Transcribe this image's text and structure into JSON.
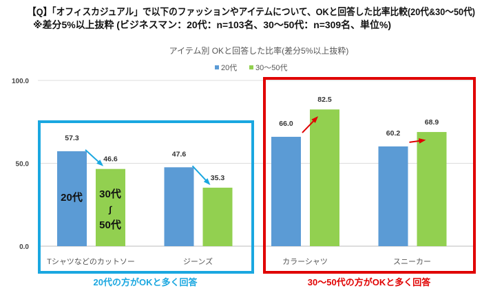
{
  "header": {
    "line1": "【Q】「オフィスカジュアル」で以下のファッションやアイテムについて、OKと回答した比率比較(20代&30～50代)",
    "line2": "※差分5%以上抜粋 (ビジネスマン：20代：n=103名、30～50代：n=309名、単位%)"
  },
  "chart_data": {
    "type": "bar",
    "title": "アイテム別 OKと回答した比率(差分5%以上抜粋)",
    "categories": [
      "Tシャツなどのカットソー",
      "ジーンズ",
      "カラーシャツ",
      "スニーカー"
    ],
    "series": [
      {
        "name": "20代",
        "values": [
          57.3,
          47.6,
          66.0,
          60.2
        ],
        "color": "#5b9bd5"
      },
      {
        "name": "30～50代",
        "values": [
          46.6,
          35.3,
          82.5,
          68.9
        ],
        "color": "#92d050"
      }
    ],
    "ylim": [
      0,
      100
    ],
    "yticks": [
      "0.0",
      "50.0",
      "100.0"
    ],
    "data_labels": [
      [
        "57.3",
        "47.6",
        "66.0",
        "60.2"
      ],
      [
        "46.6",
        "35.3",
        "82.5",
        "68.9"
      ]
    ],
    "grid": true,
    "legend": "top-center"
  },
  "annotations": {
    "bar_label_20": "20代",
    "bar_label_30_1": "30代",
    "bar_label_30_2": "∫",
    "bar_label_30_3": "50代",
    "left_caption": "20代の方がOKと多く回答",
    "right_caption": "30～50代の方がOKと多く回答",
    "left_color": "#1aa7e0",
    "right_color": "#e00000"
  }
}
